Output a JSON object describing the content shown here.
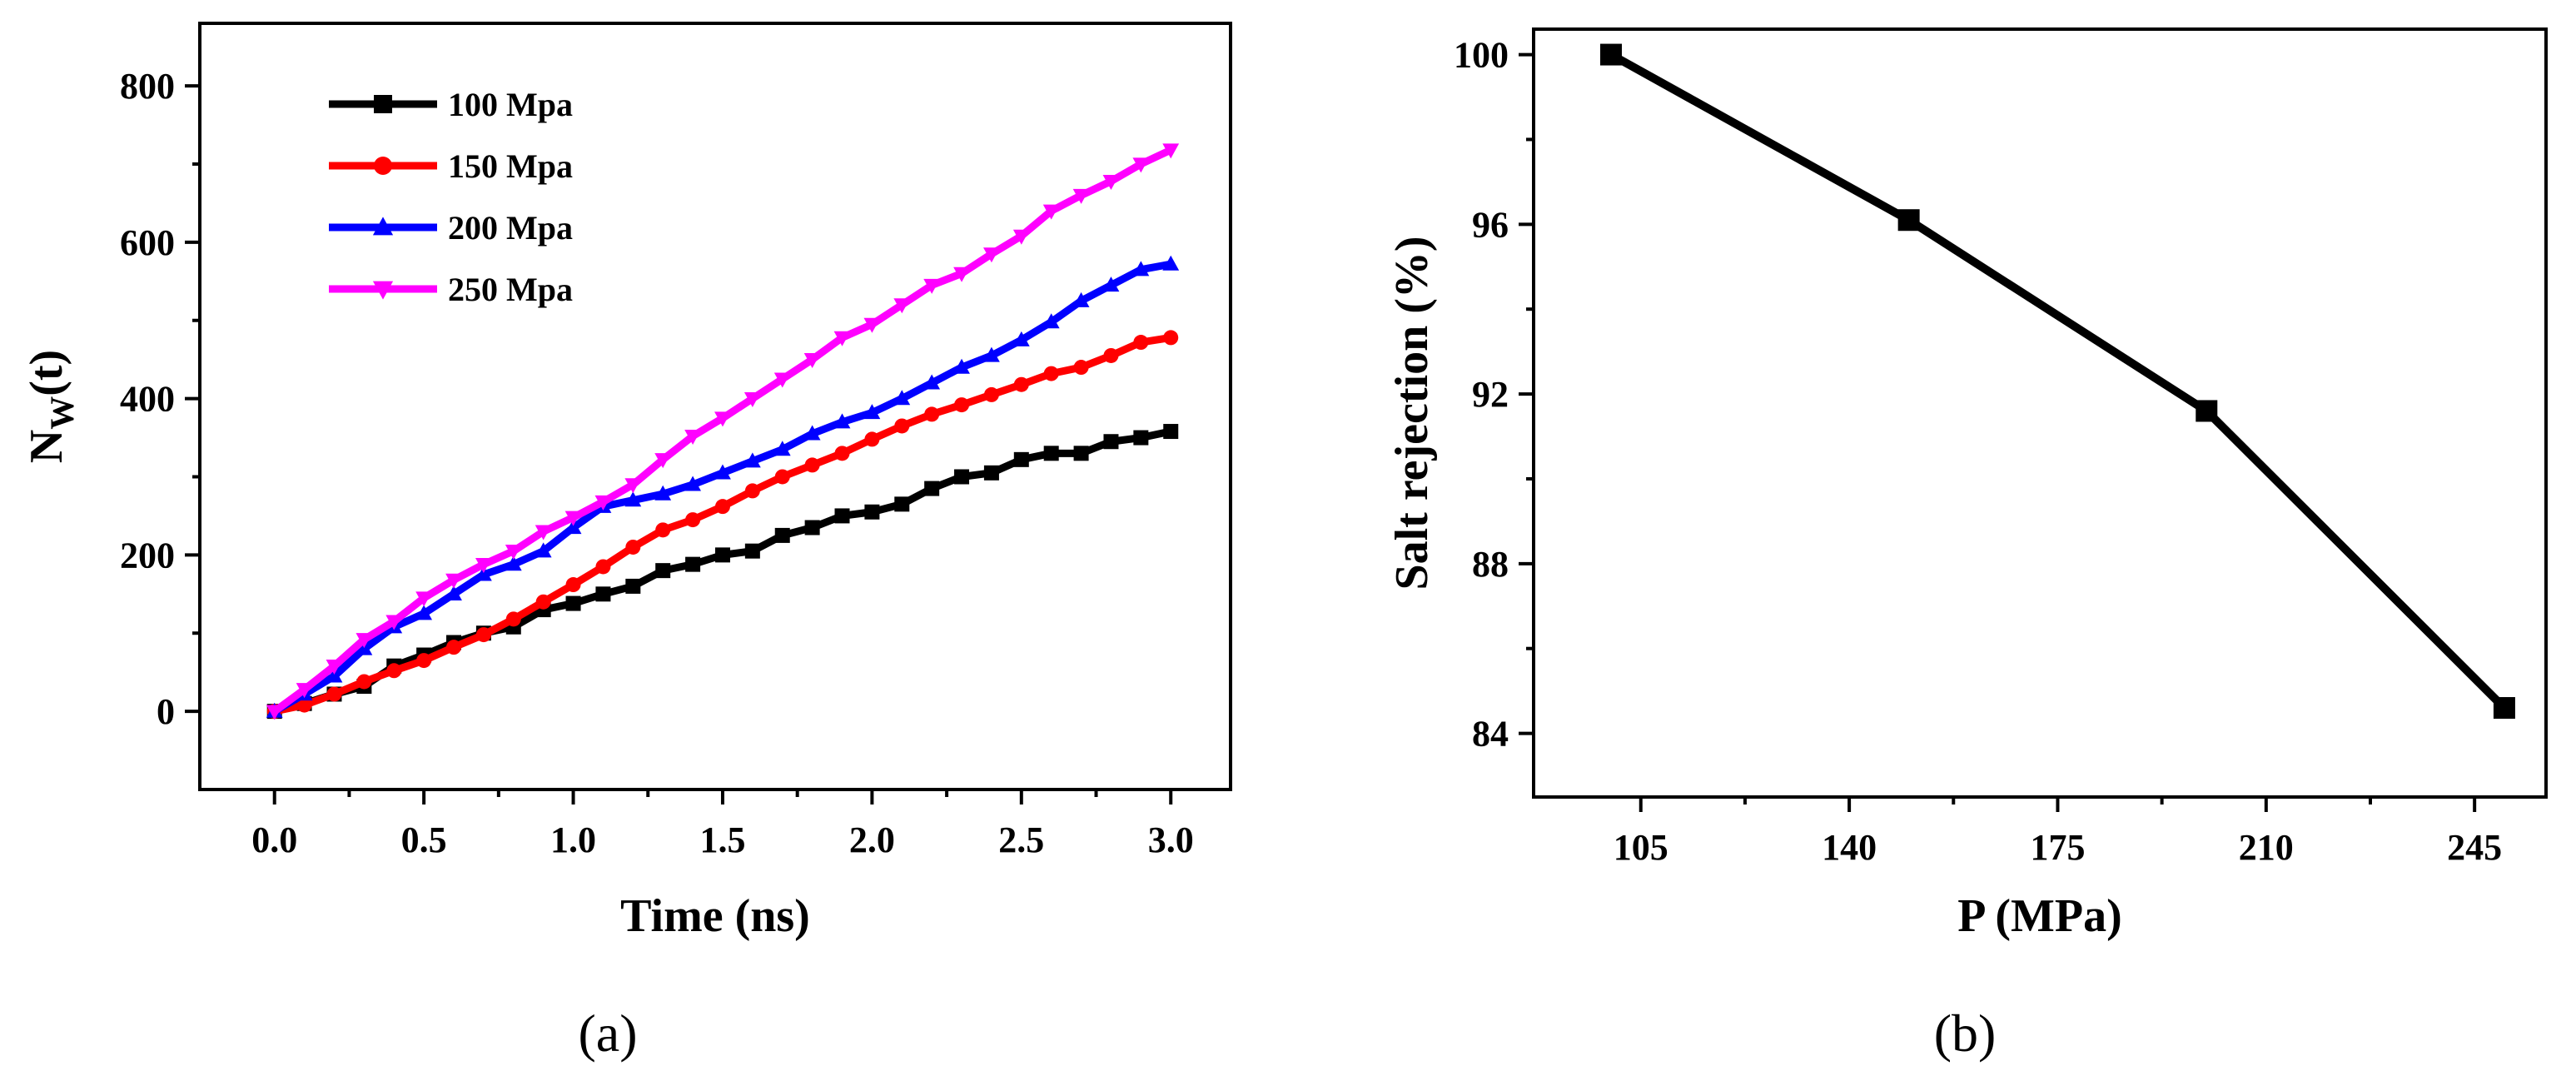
{
  "chart_data": [
    {
      "panel": "(a)",
      "type": "line",
      "xlabel": "Time (ns)",
      "ylabel_main": "N",
      "ylabel_sub": "W",
      "ylabel_tail": "(t)",
      "xlim": [
        -0.25,
        3.2
      ],
      "ylim": [
        -100,
        880
      ],
      "xticks": [
        0.0,
        0.5,
        1.0,
        1.5,
        2.0,
        2.5,
        3.0
      ],
      "xtick_labels": [
        "0.0",
        "0.5",
        "1.0",
        "1.5",
        "2.0",
        "2.5",
        "3.0"
      ],
      "yticks": [
        0,
        200,
        400,
        600,
        800
      ],
      "ytick_labels": [
        "0",
        "200",
        "400",
        "600",
        "800"
      ],
      "x": [
        0.0,
        0.1,
        0.2,
        0.3,
        0.4,
        0.5,
        0.6,
        0.7,
        0.8,
        0.9,
        1.0,
        1.1,
        1.2,
        1.3,
        1.4,
        1.5,
        1.6,
        1.7,
        1.8,
        1.9,
        2.0,
        2.1,
        2.2,
        2.3,
        2.4,
        2.5,
        2.6,
        2.7,
        2.8,
        2.9,
        3.0
      ],
      "legend_position": "top-left",
      "series": [
        {
          "name": "100 Mpa",
          "color": "#000000",
          "marker": "square",
          "values": [
            0,
            10,
            22,
            32,
            58,
            72,
            88,
            100,
            108,
            130,
            138,
            150,
            160,
            180,
            188,
            200,
            205,
            225,
            235,
            250,
            255,
            265,
            285,
            300,
            305,
            322,
            330,
            330,
            345,
            350,
            358
          ]
        },
        {
          "name": "150 Mpa",
          "color": "#ff0000",
          "marker": "circle",
          "values": [
            0,
            8,
            22,
            38,
            52,
            65,
            82,
            98,
            118,
            140,
            162,
            185,
            210,
            232,
            245,
            262,
            282,
            300,
            315,
            330,
            348,
            365,
            380,
            392,
            405,
            418,
            432,
            440,
            455,
            472,
            478
          ]
        },
        {
          "name": "200 Mpa",
          "color": "#0000ff",
          "marker": "triangle-up",
          "values": [
            0,
            22,
            45,
            80,
            108,
            125,
            150,
            175,
            188,
            205,
            235,
            262,
            270,
            278,
            290,
            305,
            320,
            335,
            355,
            370,
            382,
            400,
            420,
            440,
            455,
            475,
            498,
            525,
            545,
            565,
            572
          ]
        },
        {
          "name": "250 Mpa",
          "color": "#ff00ff",
          "marker": "triangle-down",
          "values": [
            0,
            28,
            58,
            92,
            115,
            145,
            168,
            188,
            205,
            230,
            248,
            268,
            290,
            322,
            352,
            375,
            400,
            425,
            450,
            478,
            495,
            520,
            545,
            560,
            585,
            608,
            640,
            660,
            678,
            700,
            718
          ]
        }
      ]
    },
    {
      "panel": "(b)",
      "type": "line",
      "xlabel": "P (MPa)",
      "ylabel": "Salt rejection (%)",
      "xlim": [
        87,
        257
      ],
      "ylim": [
        82.5,
        100.6
      ],
      "xticks": [
        105,
        140,
        175,
        210,
        245
      ],
      "xtick_labels": [
        "105",
        "140",
        "175",
        "210",
        "245"
      ],
      "yticks": [
        84,
        88,
        92,
        96,
        100
      ],
      "ytick_labels": [
        "84",
        "88",
        "92",
        "96",
        "100"
      ],
      "series": [
        {
          "name": "Salt rejection",
          "color": "#000000",
          "marker": "square",
          "x": [
            100,
            150,
            200,
            250
          ],
          "values": [
            100.0,
            96.1,
            91.6,
            84.6
          ]
        }
      ]
    }
  ]
}
